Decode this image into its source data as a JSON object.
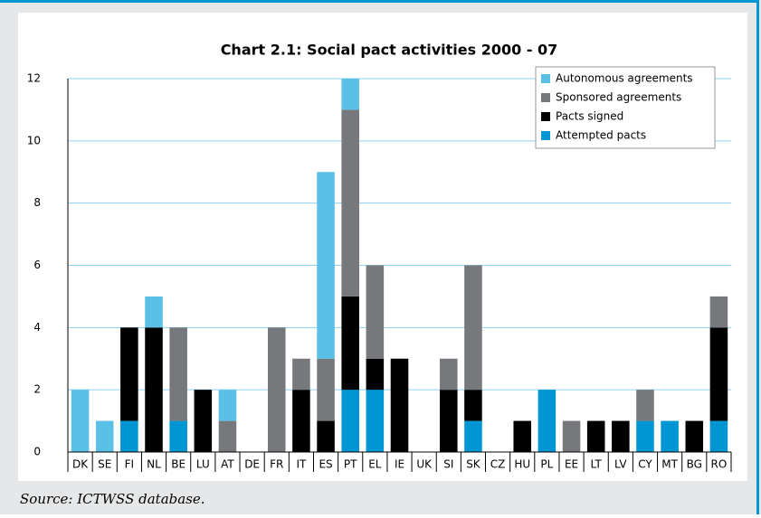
{
  "chart_data": {
    "type": "stacked_bar",
    "title": "Chart 2.1: Social pact activities 2000 - 07",
    "categories": [
      "DK",
      "SE",
      "FI",
      "NL",
      "BE",
      "LU",
      "AT",
      "DE",
      "FR",
      "IT",
      "ES",
      "PT",
      "EL",
      "IE",
      "UK",
      "SI",
      "SK",
      "CZ",
      "HU",
      "PL",
      "EE",
      "LT",
      "LV",
      "CY",
      "MT",
      "BG",
      "RO"
    ],
    "series": [
      {
        "name": "Autonomous agreements",
        "color": "#5bc0e6",
        "values": [
          2,
          1,
          0,
          1,
          0,
          0,
          1,
          0,
          0,
          0,
          6,
          1,
          0,
          0,
          0,
          0,
          0,
          0,
          0,
          0,
          0,
          0,
          0,
          0,
          0,
          0,
          0
        ]
      },
      {
        "name": "Sponsored agreements",
        "color": "#77787b",
        "values": [
          0,
          0,
          0,
          0,
          3,
          0,
          1,
          0,
          4,
          1,
          2,
          6,
          3,
          0,
          0,
          1,
          4,
          0,
          0,
          0,
          1,
          0,
          0,
          1,
          0,
          0,
          1
        ]
      },
      {
        "name": "Pacts signed",
        "color": "#000000",
        "values": [
          0,
          0,
          3,
          4,
          0,
          2,
          0,
          0,
          0,
          2,
          1,
          3,
          1,
          3,
          0,
          2,
          1,
          0,
          1,
          0,
          0,
          1,
          1,
          0,
          0,
          1,
          3
        ]
      },
      {
        "name": "Attempted pacts",
        "color": "#0095d3",
        "values": [
          0,
          0,
          1,
          0,
          1,
          0,
          0,
          0,
          0,
          0,
          0,
          2,
          2,
          0,
          0,
          0,
          1,
          0,
          0,
          2,
          0,
          0,
          0,
          1,
          1,
          0,
          1
        ]
      }
    ],
    "ylim": [
      0,
      12
    ],
    "yticks": [
      0,
      2,
      4,
      6,
      8,
      10,
      12
    ],
    "grid": true,
    "legend": "top-right",
    "source": "Source: ICTWSS database."
  }
}
